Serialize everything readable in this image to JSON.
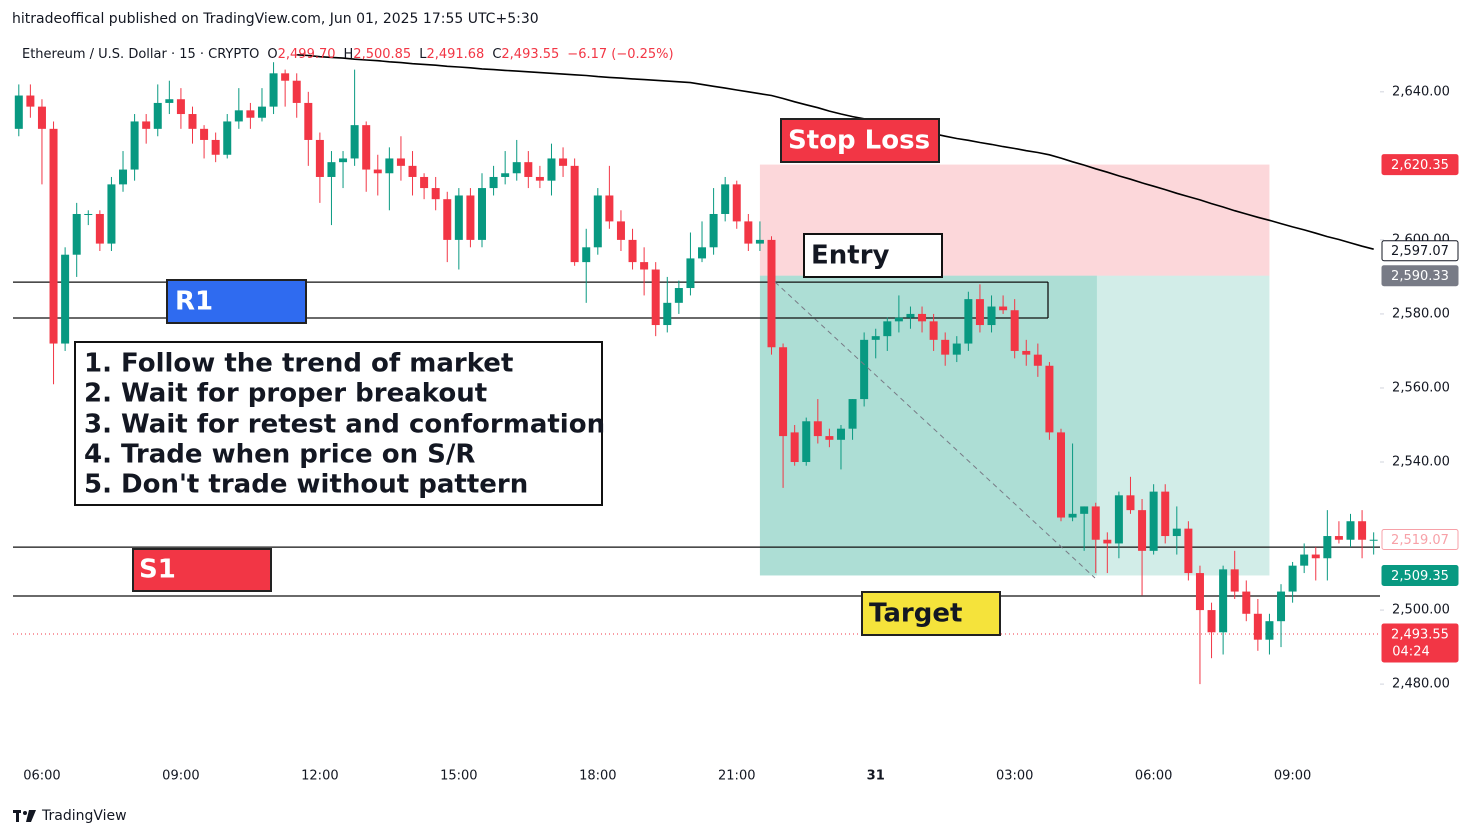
{
  "header": "hitradeoffical published on TradingView.com, Jun 01, 2025 17:55 UTC+5:30",
  "legend": {
    "symbol": "Ethereum / U.S. Dollar · 15 · CRYPTO",
    "o_label": "O",
    "o": "2,499.70",
    "h_label": "H",
    "h": "2,500.85",
    "l_label": "L",
    "l": "2,491.68",
    "c_label": "C",
    "c": "2,493.55",
    "change": "−6.17 (−0.25%)"
  },
  "footer": "TradingView",
  "chart_data": {
    "type": "candlestick",
    "up_color": "#089981",
    "down_color": "#f23645",
    "ma_color": "#000000",
    "ylim": [
      2459.5,
      2654
    ],
    "yticks": [
      {
        "value": 2480,
        "label": "2,480.00"
      },
      {
        "value": 2500,
        "label": "2,500.00"
      },
      {
        "value": 2540,
        "label": "2,540.00"
      },
      {
        "value": 2560,
        "label": "2,560.00"
      },
      {
        "value": 2580,
        "label": "2,580.00"
      },
      {
        "value": 2600,
        "label": "2,600.00"
      },
      {
        "value": 2640,
        "label": "2,640.00"
      }
    ],
    "categories": [
      null,
      null,
      "06:00",
      null,
      null,
      null,
      null,
      null,
      null,
      null,
      null,
      null,
      null,
      null,
      "09:00",
      null,
      null,
      null,
      null,
      null,
      null,
      null,
      null,
      null,
      null,
      null,
      "12:00",
      null,
      null,
      null,
      null,
      null,
      null,
      null,
      null,
      null,
      null,
      null,
      "15:00",
      null,
      null,
      null,
      null,
      null,
      null,
      null,
      null,
      null,
      null,
      null,
      "18:00",
      null,
      null,
      null,
      null,
      null,
      null,
      null,
      null,
      null,
      null,
      null,
      "21:00",
      null,
      null,
      null,
      null,
      null,
      null,
      null,
      null,
      null,
      null,
      null,
      "31",
      null,
      null,
      null,
      null,
      null,
      null,
      null,
      null,
      null,
      null,
      null,
      "03:00",
      null,
      null,
      null,
      null,
      null,
      null,
      null,
      null,
      null,
      null,
      null,
      "06:00",
      null,
      null,
      null,
      null,
      null,
      null,
      null,
      null,
      null,
      null,
      null,
      "09:00",
      null,
      null,
      null,
      null,
      null,
      null,
      null
    ],
    "open": [
      2630,
      2639,
      2636,
      2630,
      2572,
      2596,
      2607,
      2607,
      2599,
      2615,
      2619,
      2632,
      2630,
      2637,
      2638,
      2634,
      2630,
      2627,
      2623,
      2632,
      2635,
      2633,
      2636,
      2645,
      2643,
      2637,
      2627,
      2617,
      2621,
      2622,
      2631,
      2619,
      2618,
      2622,
      2620,
      2617,
      2614,
      2611,
      2600,
      2612,
      2600,
      2614,
      2617,
      2618,
      2621,
      2617,
      2616,
      2622,
      2620,
      2594,
      2598,
      2612,
      2605,
      2600,
      2594,
      2592,
      2577,
      2583,
      2587,
      2595,
      2598,
      2607,
      2615,
      2605,
      2599,
      2600,
      2571,
      2548,
      2540,
      2551,
      2547,
      2546,
      2549,
      2557,
      2573,
      2574,
      2578,
      2579,
      2580,
      2578,
      2573,
      2569,
      2572,
      2584,
      2577,
      2582,
      2581,
      2570,
      2569,
      2566,
      2548,
      2525,
      2526,
      2528,
      2519,
      2518,
      2531,
      2527,
      2516,
      2532,
      2520,
      2522,
      2510,
      2500,
      2494,
      2511,
      2505,
      2499,
      2492,
      2497,
      2505,
      2512,
      2515,
      2514,
      2520,
      2519,
      2524,
      2519
    ],
    "high": [
      2642,
      2642,
      2638,
      2632,
      2598,
      2610,
      2608,
      2608,
      2617,
      2624,
      2634,
      2634,
      2642,
      2643,
      2641,
      2636,
      2631,
      2629,
      2634,
      2641,
      2637,
      2641,
      2648,
      2646,
      2645,
      2640,
      2629,
      2624,
      2624,
      2646,
      2632,
      2623,
      2625,
      2628,
      2624,
      2618,
      2617,
      2613,
      2614,
      2614,
      2618,
      2620,
      2624,
      2627,
      2624,
      2620,
      2626,
      2625,
      2622,
      2603,
      2614,
      2620,
      2608,
      2603,
      2598,
      2594,
      2590,
      2589,
      2602,
      2605,
      2614,
      2617,
      2616,
      2607,
      2605,
      2601,
      2572,
      2550,
      2552,
      2557,
      2549,
      2550,
      2557,
      2575,
      2576,
      2579,
      2585,
      2582,
      2582,
      2580,
      2575,
      2574,
      2586,
      2588,
      2585,
      2585,
      2584,
      2573,
      2572,
      2567,
      2549,
      2545,
      2528,
      2529,
      2521,
      2532,
      2536,
      2530,
      2534,
      2534,
      2528,
      2524,
      2512,
      2502,
      2512,
      2516,
      2508,
      2503,
      2499,
      2507,
      2513,
      2518,
      2517,
      2527,
      2524,
      2526,
      2527,
      2521
    ],
    "low": [
      2628,
      2633,
      2615,
      2561,
      2570,
      2590,
      2604,
      2597,
      2597,
      2613,
      2616,
      2626,
      2628,
      2634,
      2630,
      2626,
      2622,
      2621,
      2622,
      2630,
      2630,
      2632,
      2634,
      2636,
      2633,
      2620,
      2610,
      2604,
      2614,
      2620,
      2613,
      2612,
      2608,
      2616,
      2612,
      2611,
      2608,
      2594,
      2592,
      2598,
      2598,
      2612,
      2615,
      2616,
      2614,
      2614,
      2612,
      2617,
      2593,
      2583,
      2596,
      2603,
      2597,
      2592,
      2585,
      2574,
      2575,
      2580,
      2585,
      2594,
      2596,
      2605,
      2603,
      2597,
      2597,
      2569,
      2533,
      2539,
      2539,
      2545,
      2544,
      2538,
      2546,
      2555,
      2568,
      2570,
      2575,
      2576,
      2575,
      2570,
      2566,
      2567,
      2570,
      2575,
      2575,
      2580,
      2568,
      2566,
      2563,
      2546,
      2524,
      2524,
      2516,
      2510,
      2510,
      2514,
      2526,
      2504,
      2515,
      2518,
      2515,
      2508,
      2480,
      2487,
      2488,
      2503,
      2497,
      2489,
      2488,
      2490,
      2502,
      2510,
      2508,
      2508,
      2518,
      2517,
      2514,
      2515
    ],
    "close": [
      2639,
      2636,
      2630,
      2572,
      2596,
      2607,
      2607,
      2599,
      2615,
      2619,
      2632,
      2630,
      2637,
      2638,
      2634,
      2630,
      2627,
      2623,
      2632,
      2635,
      2633,
      2636,
      2645,
      2643,
      2637,
      2627,
      2617,
      2621,
      2622,
      2631,
      2619,
      2618,
      2622,
      2620,
      2617,
      2614,
      2611,
      2600,
      2612,
      2600,
      2614,
      2617,
      2618,
      2621,
      2617,
      2616,
      2622,
      2620,
      2594,
      2598,
      2612,
      2605,
      2600,
      2594,
      2592,
      2577,
      2583,
      2587,
      2595,
      2598,
      2607,
      2615,
      2605,
      2599,
      2600,
      2571,
      2547,
      2540,
      2551,
      2547,
      2546,
      2549,
      2557,
      2573,
      2574,
      2578,
      2579,
      2580,
      2578,
      2573,
      2569,
      2572,
      2584,
      2577,
      2582,
      2581,
      2570,
      2569,
      2566,
      2548,
      2525,
      2526,
      2528,
      2519,
      2518,
      2531,
      2527,
      2516,
      2532,
      2520,
      2522,
      2510,
      2500,
      2494,
      2511,
      2505,
      2499,
      2492,
      2497,
      2505,
      2512,
      2515,
      2514,
      2520,
      2519,
      2524,
      2519,
      2519
    ],
    "moving_average": [
      null,
      null,
      null,
      null,
      null,
      null,
      null,
      null,
      null,
      null,
      null,
      null,
      null,
      null,
      null,
      null,
      null,
      null,
      null,
      null,
      null,
      null,
      null,
      null,
      2650,
      2649.8,
      2649.5,
      2649.3,
      2649.1,
      2648.8,
      2648.6,
      2648.4,
      2648.1,
      2647.9,
      2647.6,
      2647.4,
      2647.2,
      2646.9,
      2646.7,
      2646.5,
      2646.2,
      2646,
      2645.8,
      2645.6,
      2645.4,
      2645.2,
      2645,
      2644.8,
      2644.6,
      2644.4,
      2644.1,
      2643.9,
      2643.7,
      2643.5,
      2643.3,
      2643.1,
      2642.9,
      2642.7,
      2642.5,
      2642,
      2641.5,
      2641,
      2640.5,
      2640,
      2639.5,
      2639,
      2638.2,
      2637.3,
      2636.5,
      2635.7,
      2634.8,
      2634,
      2633.3,
      2632.7,
      2632,
      2631.3,
      2630.7,
      2630,
      2629.3,
      2628.7,
      2628,
      2627.4,
      2626.9,
      2626.3,
      2625.8,
      2625.2,
      2624.7,
      2624.1,
      2623.6,
      2623,
      2622.1,
      2621.1,
      2620.2,
      2619.2,
      2618.3,
      2617.3,
      2616.4,
      2615.4,
      2614.5,
      2613.6,
      2612.6,
      2611.7,
      2610.8,
      2609.8,
      2608.9,
      2607.9,
      2607,
      2606.1,
      2605.3,
      2604.4,
      2603.5,
      2602.7,
      2601.8,
      2600.9,
      2600.1,
      2599.2,
      2598.3,
      2597.5
    ],
    "horizontal_lines": [
      2588.6,
      2578.9,
      2517,
      2503.8
    ],
    "price_labels": [
      {
        "value": 2620.35,
        "label": "2,620.35",
        "bg": "#f23645",
        "fg": "#ffffff",
        "border": "#f23645"
      },
      {
        "value": 2597.07,
        "label": "2,597.07",
        "bg": "#ffffff",
        "fg": "#131722",
        "border": "#131722"
      },
      {
        "value": 2590.33,
        "label": "2,590.33",
        "bg": "#787b86",
        "fg": "#ffffff",
        "border": "#787b86"
      },
      {
        "value": 2519.07,
        "label": "2,519.07",
        "bg": "#ffffff",
        "fg": "#f7a1a8",
        "border": "#f7a1a8"
      },
      {
        "value": 2509.35,
        "label": "2,509.35",
        "bg": "#089981",
        "fg": "#ffffff",
        "border": "#089981"
      },
      {
        "value": 2493.55,
        "label": "2,493.55",
        "bg": "#f23645",
        "fg": "#ffffff",
        "border": "#f23645"
      }
    ],
    "countdown": "04:24",
    "annotations": {
      "stop_loss": "Stop Loss",
      "entry": "Entry",
      "r1": "R1",
      "s1": "S1",
      "target": "Target",
      "rules": [
        "1. Follow the trend of market",
        "2. Wait for proper breakout",
        "3. Wait for retest and conformation",
        "4. Trade when price on S/R",
        "5. Don't trade without pattern"
      ]
    }
  }
}
